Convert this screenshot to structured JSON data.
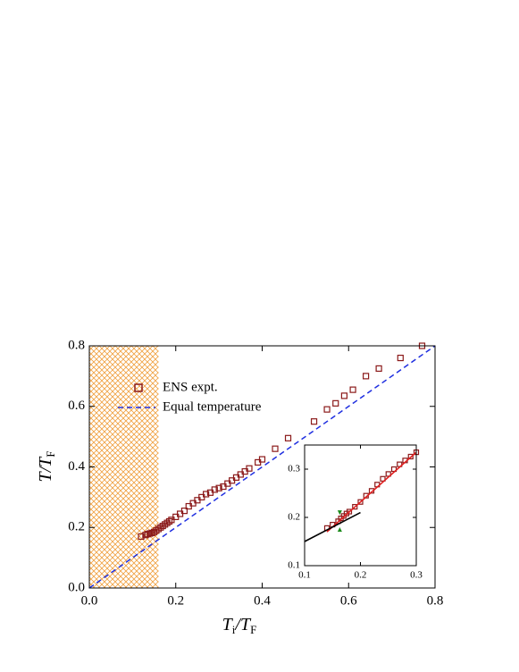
{
  "chart_data": [
    {
      "type": "scatter",
      "xlabel": [
        "T",
        "i",
        "/T",
        "F"
      ],
      "ylabel": [
        "T/T",
        "F"
      ],
      "xlim": [
        0,
        0.8
      ],
      "ylim": [
        0,
        0.8
      ],
      "xticks": [
        {
          "value": 0,
          "label": "0.0"
        },
        0.2,
        0.4,
        0.6,
        0.8
      ],
      "yticks": [
        {
          "value": 0,
          "label": "0.0"
        },
        0.2,
        0.4,
        0.6,
        0.8
      ],
      "shaded_xrange": [
        0,
        0.16
      ],
      "shade_color": "#f0a040",
      "series": [
        {
          "name": "ENS expt.",
          "color": "#8b1a1a",
          "marker": "square",
          "x": [
            0.12,
            0.13,
            0.135,
            0.14,
            0.145,
            0.15,
            0.155,
            0.16,
            0.165,
            0.17,
            0.175,
            0.18,
            0.185,
            0.19,
            0.2,
            0.21,
            0.22,
            0.23,
            0.24,
            0.25,
            0.26,
            0.27,
            0.28,
            0.29,
            0.3,
            0.31,
            0.32,
            0.33,
            0.34,
            0.35,
            0.36,
            0.37,
            0.39,
            0.4,
            0.43,
            0.46,
            0.52,
            0.55,
            0.57,
            0.59,
            0.61,
            0.64,
            0.67,
            0.72,
            0.77
          ],
          "values": [
            0.17,
            0.175,
            0.178,
            0.18,
            0.182,
            0.185,
            0.19,
            0.195,
            0.2,
            0.205,
            0.21,
            0.215,
            0.22,
            0.225,
            0.235,
            0.245,
            0.255,
            0.27,
            0.28,
            0.29,
            0.3,
            0.31,
            0.315,
            0.325,
            0.33,
            0.335,
            0.345,
            0.355,
            0.365,
            0.375,
            0.385,
            0.395,
            0.415,
            0.425,
            0.46,
            0.495,
            0.55,
            0.59,
            0.61,
            0.635,
            0.655,
            0.7,
            0.725,
            0.76,
            0.8
          ]
        },
        {
          "name": "Equal temperature",
          "color": "#1f2fe0",
          "line": "dashed",
          "x": [
            0,
            0.8
          ],
          "values": [
            0,
            0.8
          ]
        }
      ]
    },
    {
      "type": "scatter",
      "xlim": [
        0.1,
        0.3
      ],
      "ylim": [
        0.1,
        0.35
      ],
      "xticks": [
        0.1,
        0.2,
        0.3
      ],
      "yticks": [
        0.1,
        0.2,
        0.3
      ],
      "series": [
        {
          "color": "#8b1a1a",
          "marker": "square",
          "x": [
            0.14,
            0.15,
            0.16,
            0.165,
            0.17,
            0.175,
            0.18,
            0.19,
            0.2,
            0.21,
            0.22,
            0.23,
            0.24,
            0.25,
            0.26,
            0.27,
            0.28,
            0.29,
            0.3
          ],
          "values": [
            0.178,
            0.185,
            0.192,
            0.198,
            0.203,
            0.208,
            0.212,
            0.222,
            0.232,
            0.245,
            0.255,
            0.268,
            0.28,
            0.29,
            0.3,
            0.31,
            0.318,
            0.326,
            0.335
          ]
        },
        {
          "color": "#e02020",
          "line": "solid",
          "x": [
            0.14,
            0.3
          ],
          "values": [
            0.17,
            0.335
          ]
        },
        {
          "color": "#000000",
          "line": "solid",
          "x": [
            0.1,
            0.2
          ],
          "values": [
            0.15,
            0.21
          ]
        },
        {
          "color": "#1a8a1a",
          "marker": "tri-down",
          "x": [
            0.163
          ],
          "values": [
            0.21
          ]
        },
        {
          "color": "#1a8a1a",
          "marker": "tri-up",
          "x": [
            0.163
          ],
          "values": [
            0.175
          ]
        }
      ]
    }
  ]
}
